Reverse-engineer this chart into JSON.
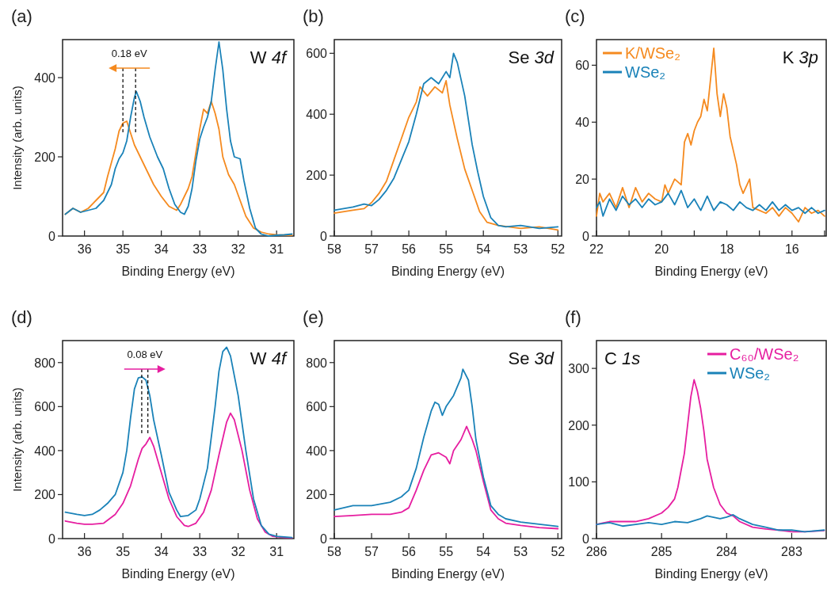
{
  "chart_data": [
    {
      "type": "line",
      "title": "(a)",
      "xlabel": "Binding Energy (eV)",
      "ylabel": "Intensity (arb. units)",
      "xlim": [
        36.57,
        30.55
      ],
      "ylim": [
        0,
        496
      ],
      "xticks": [
        36,
        35,
        34,
        33,
        32,
        31
      ],
      "yticks": [
        0,
        200,
        400
      ],
      "annotations": [
        "W 4f",
        "0.18 eV"
      ],
      "ref_lines": [
        {
          "axis": "x",
          "value": 34.67,
          "color": "#000000",
          "line_style": "dashed"
        },
        {
          "axis": "x",
          "value": 35.0,
          "color": "#000000",
          "line_style": "dashed"
        }
      ],
      "series": [
        {
          "color": "#f58a1f",
          "x": [
            36.5,
            36.3,
            36.1,
            35.9,
            35.7,
            35.5,
            35.4,
            35.3,
            35.2,
            35.1,
            35.0,
            34.9,
            34.8,
            34.7,
            34.5,
            34.35,
            34.2,
            34.0,
            33.8,
            33.6,
            33.5,
            33.4,
            33.3,
            33.2,
            33.1,
            33.0,
            32.9,
            32.8,
            32.7,
            32.6,
            32.5,
            32.4,
            32.25,
            32.1,
            31.95,
            31.8,
            31.6,
            31.4,
            31.2,
            31.0,
            30.6
          ],
          "values": [
            55,
            70,
            60,
            70,
            90,
            110,
            150,
            185,
            220,
            265,
            285,
            290,
            260,
            230,
            190,
            160,
            130,
            100,
            75,
            65,
            80,
            100,
            120,
            150,
            210,
            270,
            320,
            310,
            340,
            310,
            270,
            200,
            155,
            130,
            90,
            50,
            20,
            10,
            5,
            3,
            2
          ]
        },
        {
          "color": "#1a82b8",
          "x": [
            36.5,
            36.3,
            36.1,
            35.9,
            35.7,
            35.5,
            35.3,
            35.2,
            35.1,
            35.0,
            34.9,
            34.8,
            34.7,
            34.65,
            34.55,
            34.45,
            34.3,
            34.1,
            33.95,
            33.8,
            33.65,
            33.5,
            33.4,
            33.3,
            33.2,
            33.1,
            33.0,
            32.9,
            32.8,
            32.7,
            32.6,
            32.5,
            32.4,
            32.3,
            32.2,
            32.1,
            31.95,
            31.85,
            31.7,
            31.55,
            31.4,
            31.2,
            31.0,
            30.8,
            30.6
          ],
          "values": [
            55,
            70,
            60,
            65,
            70,
            90,
            130,
            170,
            195,
            210,
            240,
            300,
            350,
            365,
            340,
            300,
            250,
            200,
            170,
            120,
            80,
            60,
            55,
            75,
            120,
            190,
            245,
            275,
            300,
            340,
            420,
            490,
            420,
            320,
            240,
            200,
            195,
            140,
            70,
            20,
            5,
            0,
            2,
            3,
            5
          ]
        }
      ]
    },
    {
      "type": "line",
      "title": "(b)",
      "xlabel": "Binding Energy (eV)",
      "xlim": [
        58,
        51.9
      ],
      "ylim": [
        0,
        645
      ],
      "xticks": [
        58,
        57,
        56,
        55,
        54,
        53,
        52
      ],
      "yticks": [
        0,
        200,
        400,
        600
      ],
      "annotations": [
        "Se 3d"
      ],
      "series": [
        {
          "color": "#f58a1f",
          "x": [
            58,
            57.5,
            57.2,
            57.0,
            56.8,
            56.6,
            56.4,
            56.2,
            56.0,
            55.8,
            55.7,
            55.5,
            55.3,
            55.1,
            55.0,
            54.9,
            54.7,
            54.5,
            54.3,
            54.1,
            53.9,
            53.6,
            53.0,
            52.5,
            52.0
          ],
          "values": [
            75,
            85,
            90,
            110,
            140,
            180,
            250,
            320,
            390,
            440,
            490,
            460,
            490,
            470,
            510,
            430,
            320,
            220,
            150,
            80,
            45,
            35,
            25,
            30,
            20
          ]
        },
        {
          "color": "#1a82b8",
          "x": [
            58,
            57.5,
            57.2,
            57.0,
            56.8,
            56.6,
            56.4,
            56.2,
            56.0,
            55.8,
            55.6,
            55.4,
            55.2,
            55.0,
            54.9,
            54.8,
            54.7,
            54.5,
            54.3,
            54.15,
            54.0,
            53.8,
            53.6,
            53.4,
            53.0,
            52.5,
            52.0
          ],
          "values": [
            85,
            95,
            105,
            100,
            120,
            150,
            190,
            250,
            310,
            400,
            500,
            520,
            500,
            540,
            520,
            600,
            570,
            460,
            300,
            210,
            130,
            60,
            35,
            30,
            35,
            25,
            30
          ]
        }
      ]
    },
    {
      "type": "line",
      "title": "(c)",
      "xlabel": "Binding Energy (eV)",
      "xlim": [
        22,
        14.95
      ],
      "ylim": [
        0,
        69
      ],
      "xticks": [
        22,
        {
          "value": 21,
          "label": null
        },
        20,
        {
          "value": 19,
          "label": null
        },
        18,
        {
          "value": 17,
          "label": null
        },
        16,
        {
          "value": 15,
          "label": null
        }
      ],
      "yticks": [
        0,
        20,
        40,
        60
      ],
      "legend": "top left",
      "annotations": [
        "K 3p"
      ],
      "series": [
        {
          "name": "K/WSe₂",
          "color": "#f58a1f",
          "x": [
            22,
            21.9,
            21.8,
            21.6,
            21.4,
            21.2,
            21.0,
            20.8,
            20.6,
            20.4,
            20.2,
            20.0,
            19.9,
            19.8,
            19.6,
            19.4,
            19.3,
            19.2,
            19.1,
            19.0,
            18.9,
            18.8,
            18.7,
            18.6,
            18.5,
            18.4,
            18.3,
            18.2,
            18.1,
            18.0,
            17.9,
            17.8,
            17.7,
            17.6,
            17.5,
            17.3,
            17.2,
            17.0,
            16.8,
            16.6,
            16.4,
            16.2,
            16.0,
            15.8,
            15.6,
            15.4,
            15.2,
            15.0
          ],
          "values": [
            7,
            15,
            12,
            15,
            10,
            17,
            10,
            17,
            12,
            15,
            13,
            12,
            18,
            15,
            20,
            18,
            33,
            36,
            32,
            37,
            40,
            42,
            48,
            44,
            55,
            66,
            50,
            42,
            50,
            45,
            35,
            30,
            25,
            18,
            15,
            20,
            10,
            9,
            8,
            10,
            7,
            10,
            8,
            5,
            10,
            8,
            9,
            7
          ]
        },
        {
          "name": "WSe₂",
          "color": "#1a82b8",
          "x": [
            22,
            21.9,
            21.8,
            21.6,
            21.4,
            21.2,
            21.0,
            20.8,
            20.6,
            20.4,
            20.2,
            20.0,
            19.8,
            19.6,
            19.4,
            19.2,
            19.0,
            18.8,
            18.6,
            18.4,
            18.2,
            18.0,
            17.8,
            17.6,
            17.4,
            17.2,
            17.0,
            16.8,
            16.6,
            16.4,
            16.2,
            16.0,
            15.8,
            15.6,
            15.4,
            15.2,
            15.0
          ],
          "values": [
            10,
            12,
            7,
            13,
            9,
            14,
            11,
            13,
            10,
            13,
            11,
            12,
            15,
            11,
            16,
            10,
            13,
            9,
            14,
            9,
            12,
            11,
            9,
            12,
            10,
            9,
            11,
            9,
            12,
            9,
            11,
            9,
            10,
            8,
            10,
            8,
            9
          ]
        }
      ]
    },
    {
      "type": "line",
      "title": "(d)",
      "xlabel": "Binding Energy (eV)",
      "ylabel": "Intensity (arb. units)",
      "xlim": [
        36.57,
        30.55
      ],
      "ylim": [
        0,
        900
      ],
      "xticks": [
        36,
        35,
        34,
        33,
        32,
        31
      ],
      "yticks": [
        0,
        200,
        400,
        600,
        800
      ],
      "annotations": [
        "W 4f",
        "0.08 eV"
      ],
      "ref_lines": [
        {
          "axis": "x",
          "value": 34.51,
          "color": "#000000",
          "line_style": "dashed"
        },
        {
          "axis": "x",
          "value": 34.35,
          "color": "#000000",
          "line_style": "dashed"
        }
      ],
      "series": [
        {
          "color": "#e61ea0",
          "x": [
            36.5,
            36.2,
            36.0,
            35.8,
            35.5,
            35.2,
            35.0,
            34.8,
            34.6,
            34.5,
            34.4,
            34.3,
            34.2,
            34.0,
            33.8,
            33.6,
            33.4,
            33.3,
            33.1,
            32.9,
            32.7,
            32.5,
            32.3,
            32.2,
            32.1,
            31.9,
            31.7,
            31.5,
            31.3,
            31.1,
            30.8,
            30.6
          ],
          "values": [
            80,
            70,
            65,
            65,
            70,
            110,
            160,
            240,
            360,
            410,
            430,
            460,
            420,
            300,
            180,
            100,
            60,
            55,
            70,
            120,
            220,
            380,
            530,
            570,
            540,
            400,
            220,
            90,
            30,
            10,
            5,
            3
          ]
        },
        {
          "color": "#1a82b8",
          "x": [
            36.5,
            36.2,
            36.0,
            35.8,
            35.6,
            35.4,
            35.2,
            35.0,
            34.9,
            34.8,
            34.7,
            34.6,
            34.5,
            34.4,
            34.3,
            34.2,
            34.0,
            33.8,
            33.6,
            33.5,
            33.3,
            33.1,
            33.0,
            32.8,
            32.6,
            32.5,
            32.4,
            32.3,
            32.2,
            32.0,
            31.8,
            31.6,
            31.4,
            31.2,
            31.0,
            30.6
          ],
          "values": [
            120,
            110,
            105,
            110,
            130,
            160,
            200,
            300,
            400,
            550,
            680,
            730,
            735,
            720,
            650,
            540,
            380,
            210,
            130,
            100,
            105,
            130,
            180,
            320,
            600,
            760,
            850,
            870,
            830,
            650,
            400,
            180,
            60,
            20,
            10,
            5
          ]
        }
      ]
    },
    {
      "type": "line",
      "title": "(e)",
      "xlabel": "Binding Energy (eV)",
      "xlim": [
        58,
        51.9
      ],
      "ylim": [
        0,
        900
      ],
      "xticks": [
        58,
        57,
        56,
        55,
        54,
        53,
        52
      ],
      "yticks": [
        0,
        200,
        400,
        600,
        800
      ],
      "annotations": [
        "Se 3d"
      ],
      "series": [
        {
          "color": "#e61ea0",
          "x": [
            58,
            57.5,
            57.0,
            56.5,
            56.2,
            56.0,
            55.8,
            55.6,
            55.4,
            55.2,
            55.0,
            54.9,
            54.8,
            54.6,
            54.45,
            54.3,
            54.2,
            54.0,
            53.8,
            53.6,
            53.4,
            53.0,
            52.5,
            52.0
          ],
          "values": [
            100,
            105,
            110,
            110,
            120,
            140,
            220,
            310,
            380,
            390,
            370,
            340,
            400,
            450,
            510,
            450,
            400,
            260,
            130,
            90,
            70,
            60,
            50,
            45
          ]
        },
        {
          "color": "#1a82b8",
          "x": [
            58,
            57.5,
            57.0,
            56.5,
            56.2,
            56.0,
            55.8,
            55.6,
            55.4,
            55.3,
            55.2,
            55.1,
            55.0,
            54.8,
            54.6,
            54.55,
            54.4,
            54.3,
            54.2,
            54.0,
            53.8,
            53.6,
            53.4,
            53.0,
            52.5,
            52.0
          ],
          "values": [
            130,
            150,
            150,
            165,
            190,
            220,
            320,
            460,
            580,
            620,
            610,
            560,
            600,
            650,
            730,
            770,
            720,
            600,
            450,
            280,
            150,
            110,
            90,
            75,
            65,
            55
          ]
        }
      ]
    },
    {
      "type": "line",
      "title": "(f)",
      "xlabel": "Binding Energy (eV)",
      "xlim": [
        286,
        282.47
      ],
      "ylim": [
        0,
        349
      ],
      "xticks": [
        286,
        285,
        284,
        283
      ],
      "yticks": [
        0,
        100,
        200,
        300
      ],
      "legend": "top right",
      "annotations": [
        "C 1s"
      ],
      "series": [
        {
          "name": "C₆₀/WSe₂",
          "color": "#e61ea0",
          "x": [
            286,
            285.8,
            285.6,
            285.4,
            285.2,
            285.0,
            284.9,
            284.8,
            284.75,
            284.7,
            284.65,
            284.6,
            284.55,
            284.5,
            284.45,
            284.4,
            284.35,
            284.3,
            284.2,
            284.1,
            284.0,
            283.9,
            283.8,
            283.6,
            283.4,
            283.2,
            283.0,
            282.8,
            282.5
          ],
          "values": [
            25,
            30,
            30,
            30,
            35,
            45,
            55,
            70,
            90,
            120,
            150,
            200,
            250,
            280,
            260,
            230,
            190,
            140,
            90,
            60,
            45,
            40,
            30,
            20,
            17,
            15,
            12,
            12,
            14
          ]
        },
        {
          "name": "WSe₂",
          "color": "#1a82b8",
          "x": [
            286,
            285.8,
            285.6,
            285.4,
            285.2,
            285.0,
            284.8,
            284.6,
            284.4,
            284.3,
            284.1,
            284.0,
            283.9,
            283.8,
            283.6,
            283.4,
            283.2,
            283.0,
            282.8,
            282.5
          ],
          "values": [
            25,
            28,
            22,
            25,
            28,
            25,
            30,
            28,
            35,
            40,
            35,
            38,
            42,
            35,
            25,
            20,
            15,
            15,
            12,
            15
          ]
        }
      ]
    }
  ]
}
